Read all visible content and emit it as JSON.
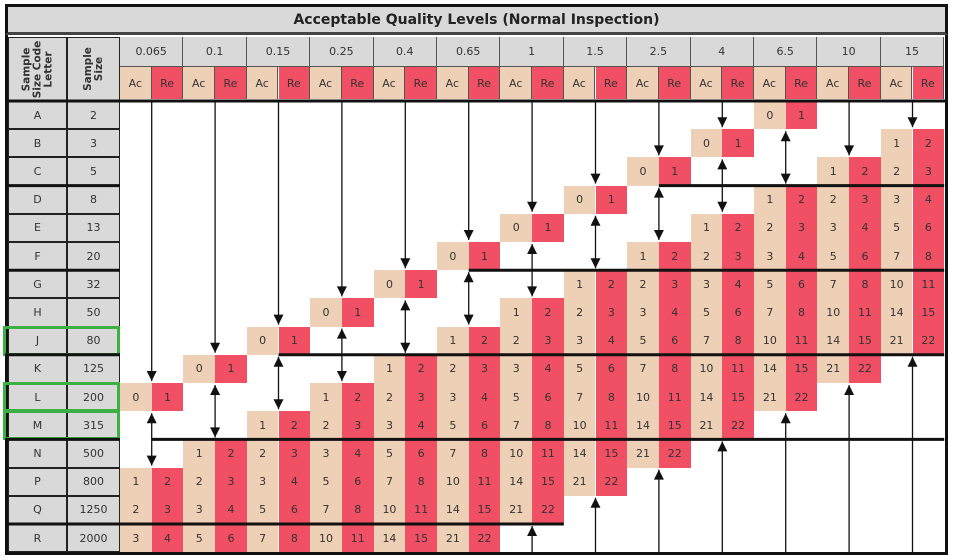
{
  "title": "Acceptable Quality Levels (Normal Inspection)",
  "headers": {
    "code_letter": "Sample\nSize Code\nLetter",
    "sample_size": "Sample\nSize",
    "ac": "Ac",
    "re": "Re"
  },
  "aql_levels": [
    "0.065",
    "0.1",
    "0.15",
    "0.25",
    "0.4",
    "0.65",
    "1",
    "1.5",
    "2.5",
    "4",
    "6.5",
    "10",
    "15"
  ],
  "colors": {
    "ac": "#eed0b6",
    "re": "#f04f64",
    "header": "#d9d9d9",
    "highlight": "#3cb043"
  },
  "highlighted_rows": [
    "J",
    "L",
    "M"
  ],
  "rows": [
    {
      "letter": "A",
      "size": "2",
      "cells": {
        "6.5": [
          0,
          1
        ]
      }
    },
    {
      "letter": "B",
      "size": "3",
      "cells": {
        "4": [
          0,
          1
        ],
        "15": [
          1,
          2
        ]
      }
    },
    {
      "letter": "C",
      "size": "5",
      "cells": {
        "2.5": [
          0,
          1
        ],
        "10": [
          1,
          2
        ],
        "15": [
          2,
          3
        ]
      }
    },
    {
      "letter": "D",
      "size": "8",
      "cells": {
        "1.5": [
          0,
          1
        ],
        "6.5": [
          1,
          2
        ],
        "10": [
          2,
          3
        ],
        "15": [
          3,
          4
        ]
      }
    },
    {
      "letter": "E",
      "size": "13",
      "cells": {
        "1": [
          0,
          1
        ],
        "4": [
          1,
          2
        ],
        "6.5": [
          2,
          3
        ],
        "10": [
          3,
          4
        ],
        "15": [
          5,
          6
        ]
      }
    },
    {
      "letter": "F",
      "size": "20",
      "cells": {
        "0.65": [
          0,
          1
        ],
        "2.5": [
          1,
          2
        ],
        "4": [
          2,
          3
        ],
        "6.5": [
          3,
          4
        ],
        "10": [
          5,
          6
        ],
        "15": [
          7,
          8
        ]
      }
    },
    {
      "letter": "G",
      "size": "32",
      "cells": {
        "0.4": [
          0,
          1
        ],
        "1.5": [
          1,
          2
        ],
        "2.5": [
          2,
          3
        ],
        "4": [
          3,
          4
        ],
        "6.5": [
          5,
          6
        ],
        "10": [
          7,
          8
        ],
        "15": [
          10,
          11
        ]
      }
    },
    {
      "letter": "H",
      "size": "50",
      "cells": {
        "0.25": [
          0,
          1
        ],
        "1": [
          1,
          2
        ],
        "1.5": [
          2,
          3
        ],
        "2.5": [
          3,
          4
        ],
        "4": [
          5,
          6
        ],
        "6.5": [
          7,
          8
        ],
        "10": [
          10,
          11
        ],
        "15": [
          14,
          15
        ]
      }
    },
    {
      "letter": "J",
      "size": "80",
      "cells": {
        "0.15": [
          0,
          1
        ],
        "0.65": [
          1,
          2
        ],
        "1": [
          2,
          3
        ],
        "1.5": [
          3,
          4
        ],
        "2.5": [
          5,
          6
        ],
        "4": [
          7,
          8
        ],
        "6.5": [
          10,
          11
        ],
        "10": [
          14,
          15
        ],
        "15": [
          21,
          22
        ]
      }
    },
    {
      "letter": "K",
      "size": "125",
      "cells": {
        "0.1": [
          0,
          1
        ],
        "0.4": [
          1,
          2
        ],
        "0.65": [
          2,
          3
        ],
        "1": [
          3,
          4
        ],
        "1.5": [
          5,
          6
        ],
        "2.5": [
          7,
          8
        ],
        "4": [
          10,
          11
        ],
        "6.5": [
          14,
          15
        ],
        "10": [
          21,
          22
        ]
      }
    },
    {
      "letter": "L",
      "size": "200",
      "cells": {
        "0.065": [
          0,
          1
        ],
        "0.25": [
          1,
          2
        ],
        "0.4": [
          2,
          3
        ],
        "0.65": [
          3,
          4
        ],
        "1": [
          5,
          6
        ],
        "1.5": [
          7,
          8
        ],
        "2.5": [
          10,
          11
        ],
        "4": [
          14,
          15
        ],
        "6.5": [
          21,
          22
        ]
      }
    },
    {
      "letter": "M",
      "size": "315",
      "cells": {
        "0.15": [
          1,
          2
        ],
        "0.25": [
          2,
          3
        ],
        "0.4": [
          3,
          4
        ],
        "0.65": [
          5,
          6
        ],
        "1": [
          7,
          8
        ],
        "1.5": [
          10,
          11
        ],
        "2.5": [
          14,
          15
        ],
        "4": [
          21,
          22
        ]
      }
    },
    {
      "letter": "N",
      "size": "500",
      "cells": {
        "0.1": [
          1,
          2
        ],
        "0.15": [
          2,
          3
        ],
        "0.25": [
          3,
          4
        ],
        "0.4": [
          5,
          6
        ],
        "0.65": [
          7,
          8
        ],
        "1": [
          10,
          11
        ],
        "1.5": [
          14,
          15
        ],
        "2.5": [
          21,
          22
        ]
      }
    },
    {
      "letter": "P",
      "size": "800",
      "cells": {
        "0.065": [
          1,
          2
        ],
        "0.1": [
          2,
          3
        ],
        "0.15": [
          3,
          4
        ],
        "0.25": [
          5,
          6
        ],
        "0.4": [
          7,
          8
        ],
        "0.65": [
          10,
          11
        ],
        "1": [
          14,
          15
        ],
        "1.5": [
          21,
          22
        ]
      }
    },
    {
      "letter": "Q",
      "size": "1250",
      "cells": {
        "0.065": [
          2,
          3
        ],
        "0.1": [
          3,
          4
        ],
        "0.15": [
          5,
          6
        ],
        "0.25": [
          7,
          8
        ],
        "0.4": [
          10,
          11
        ],
        "0.65": [
          14,
          15
        ],
        "1": [
          21,
          22
        ]
      }
    },
    {
      "letter": "R",
      "size": "2000",
      "cells": {
        "0.065": [
          3,
          4
        ],
        "0.1": [
          5,
          6
        ],
        "0.15": [
          7,
          8
        ],
        "0.25": [
          10,
          11
        ],
        "0.4": [
          14,
          15
        ],
        "0.65": [
          21,
          22
        ]
      }
    }
  ]
}
